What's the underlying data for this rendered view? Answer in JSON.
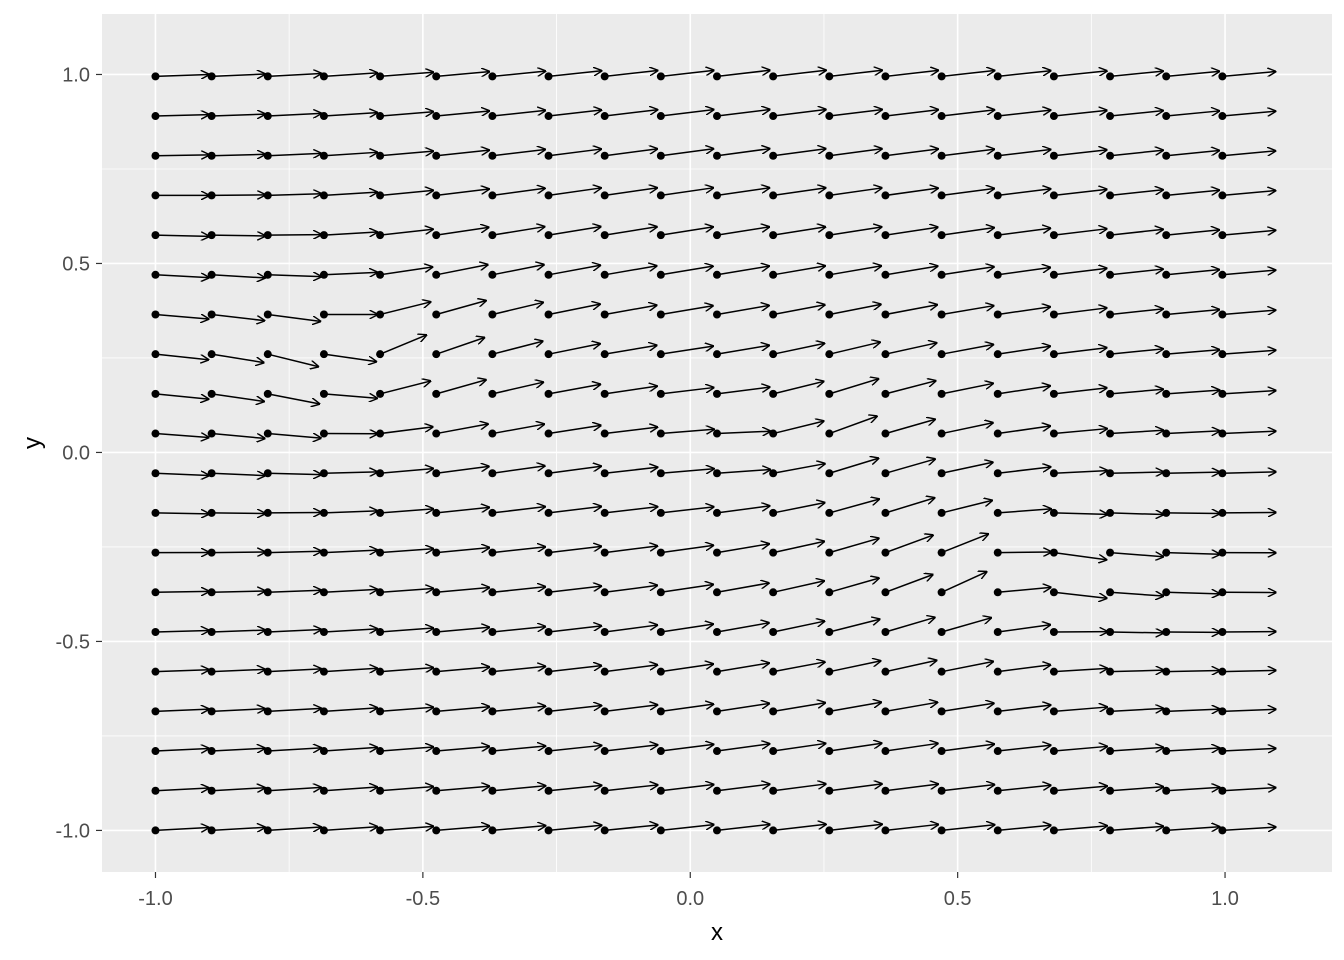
{
  "chart_data": {
    "type": "scatter",
    "subtype": "vector-field",
    "title": "",
    "xlabel": "x",
    "ylabel": "y",
    "xlim": [
      -1.1,
      1.2
    ],
    "ylim": [
      -1.11,
      1.16
    ],
    "x_ticks": [
      -1.0,
      -0.5,
      0.0,
      0.5,
      1.0
    ],
    "x_tick_labels": [
      "-1.0",
      "-0.5",
      "0.0",
      "0.5",
      "1.0"
    ],
    "y_ticks": [
      -1.0,
      -0.5,
      0.0,
      0.5,
      1.0
    ],
    "y_tick_labels": [
      "-1.0",
      "-0.5",
      "0.0",
      "0.5",
      "1.0"
    ],
    "grid": true,
    "legend": "none",
    "colors": {
      "panel_background": "#ebebeb",
      "grid": "#ffffff",
      "points": "#000000",
      "arrows": "#000000",
      "tick_text": "#4d4d4d",
      "title_text": "#000000"
    },
    "grid_spec": {
      "x_start": -1.0,
      "x_step": 0.105,
      "x_count": 20,
      "y_start": -1.0,
      "y_step": 0.105,
      "y_count": 20,
      "arrow_length": 0.1,
      "vortices": [
        {
          "x": -0.65,
          "y": 0.2,
          "strength": 1
        },
        {
          "x": 0.55,
          "y": -0.28,
          "strength": -1
        },
        {
          "x": 0.15,
          "y": 0.02,
          "strength": 0.6
        }
      ]
    }
  }
}
